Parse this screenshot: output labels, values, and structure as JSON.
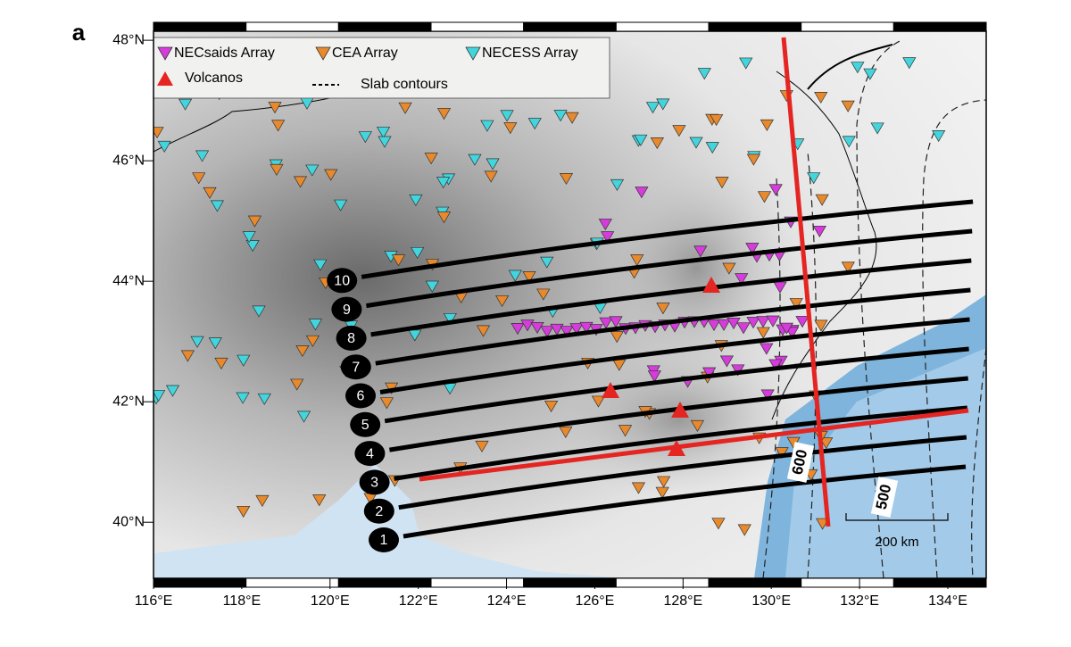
{
  "panel_label": "a",
  "legend": {
    "items": [
      "NECsaids Array",
      "CEA Array",
      "NECESS Array",
      "Volcanos",
      "Slab contours"
    ]
  },
  "map": {
    "xlim": [
      116,
      134.87
    ],
    "ylim": [
      39.07,
      48.15
    ],
    "xticks": [
      {
        "value": 116,
        "label": "116°E"
      },
      {
        "value": 118,
        "label": "118°E"
      },
      {
        "value": 120,
        "label": "120°E"
      },
      {
        "value": 122,
        "label": "122°E"
      },
      {
        "value": 124,
        "label": "124°E"
      },
      {
        "value": 126,
        "label": "126°E"
      },
      {
        "value": 128,
        "label": "128°E"
      },
      {
        "value": 130,
        "label": "130°E"
      },
      {
        "value": 132,
        "label": "132°E"
      },
      {
        "value": 134,
        "label": "134°E"
      }
    ],
    "yticks": [
      {
        "value": 40,
        "label": "40°N"
      },
      {
        "value": 42,
        "label": "42°N"
      },
      {
        "value": 44,
        "label": "44°N"
      },
      {
        "value": 46,
        "label": "46°N"
      },
      {
        "value": 48,
        "label": "48°N"
      }
    ]
  },
  "profiles": [
    "1",
    "2",
    "3",
    "4",
    "5",
    "6",
    "7",
    "8",
    "9",
    "10"
  ],
  "slab_labels": [
    "600",
    "500"
  ],
  "scale_bar": "200 km"
}
